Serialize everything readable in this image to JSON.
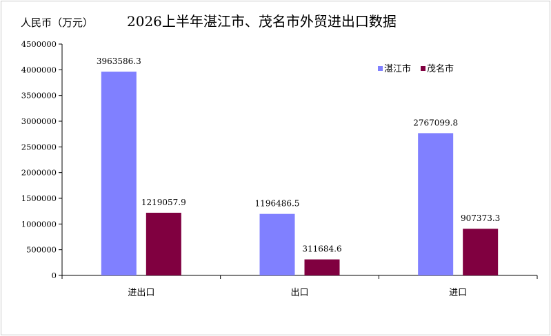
{
  "chart_data": {
    "type": "bar",
    "title": "2026上半年湛江市、茂名市外贸进出口数据",
    "unit_label": "人民币（万元）",
    "categories": [
      "进出口",
      "出口",
      "进口"
    ],
    "series": [
      {
        "name": "湛江市",
        "color": "#8080ff",
        "values": [
          3963586.3,
          1196486.5,
          2767099.8
        ]
      },
      {
        "name": "茂名市",
        "color": "#800040",
        "values": [
          1219057.9,
          311684.6,
          907373.3
        ]
      }
    ],
    "data_labels": [
      [
        "3963586.3",
        "1196486.5",
        "2767099.8"
      ],
      [
        "1219057.9",
        "311684.6",
        "907373.3"
      ]
    ],
    "ylim": [
      0,
      4500000
    ],
    "yticks": [
      "0",
      "500000",
      "1000000",
      "1500000",
      "2000000",
      "2500000",
      "3000000",
      "3500000",
      "4000000",
      "4500000"
    ],
    "grid": false,
    "legend": "top-right"
  }
}
